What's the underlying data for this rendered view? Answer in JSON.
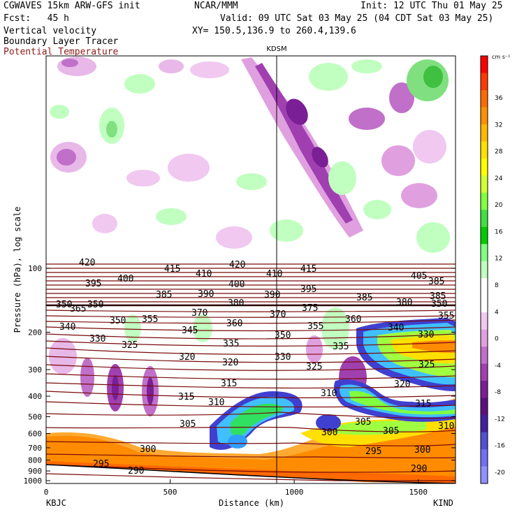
{
  "header": {
    "model": "CGWAVES 15km ARW-GFS init",
    "forecast": "Fcst:   45 h",
    "org": "NCAR/MMM",
    "init": "Init: 12 UTC Thu 01 May 25",
    "valid": "Valid: 09 UTC Sat 03 May 25 (04 CDT Sat 03 May 25)",
    "xy": "XY= 150.5,136.9 to 260.4,139.6",
    "field1": "Vertical velocity",
    "field2": "Boundary Layer Tracer",
    "field3": "Potential Temperature"
  },
  "chart_data": {
    "type": "cross-section",
    "xlabel": "Distance (km)",
    "ylabel": "Pressure (hPa), log scale",
    "x_ticks": [
      "0",
      "500",
      "1000",
      "1500"
    ],
    "y_ticks": [
      "100",
      "200",
      "300",
      "400",
      "500",
      "600",
      "700",
      "800",
      "900",
      "1000"
    ],
    "xlim": [
      0,
      1650
    ],
    "left_station": "KBJC",
    "right_station": "KIND",
    "mid_station": "KDSM",
    "colorbar_unit": "cm s⁻¹",
    "colorbar_levels": [
      "36",
      "32",
      "28",
      "24",
      "20",
      "16",
      "12",
      "8",
      "4",
      "0",
      "-4",
      "-8",
      "-12",
      "-16",
      "-20"
    ],
    "colorbar_colors": [
      "#ff0000",
      "#ff3a00",
      "#ff6a00",
      "#ff9000",
      "#ffb800",
      "#ffe000",
      "#ffff00",
      "#d0ff30",
      "#80ff40",
      "#40e040",
      "#00cc00",
      "#80ff80",
      "#c0ffc0",
      "#ffffff",
      "#ffffff",
      "#f0c8f0",
      "#e0a0e0",
      "#c070c8",
      "#a040b0",
      "#7a1f95",
      "#5c1080",
      "#4020a0",
      "#5050d0",
      "#7070f0",
      "#9090ff"
    ],
    "theta_labels": [
      {
        "v": "420",
        "x": 113,
        "y": 380
      },
      {
        "v": "415",
        "x": 235,
        "y": 389
      },
      {
        "v": "420",
        "x": 328,
        "y": 383
      },
      {
        "v": "415",
        "x": 430,
        "y": 389
      },
      {
        "v": "410",
        "x": 280,
        "y": 396
      },
      {
        "v": "410",
        "x": 381,
        "y": 396
      },
      {
        "v": "405",
        "x": 588,
        "y": 399
      },
      {
        "v": "395",
        "x": 122,
        "y": 410
      },
      {
        "v": "400",
        "x": 168,
        "y": 403
      },
      {
        "v": "400",
        "x": 327,
        "y": 411
      },
      {
        "v": "395",
        "x": 430,
        "y": 418
      },
      {
        "v": "385",
        "x": 613,
        "y": 407
      },
      {
        "v": "385",
        "x": 223,
        "y": 426
      },
      {
        "v": "390",
        "x": 283,
        "y": 425
      },
      {
        "v": "390",
        "x": 378,
        "y": 426
      },
      {
        "v": "385",
        "x": 510,
        "y": 430
      },
      {
        "v": "385",
        "x": 615,
        "y": 428
      },
      {
        "v": "380",
        "x": 326,
        "y": 438
      },
      {
        "v": "375",
        "x": 432,
        "y": 445
      },
      {
        "v": "380",
        "x": 567,
        "y": 437
      },
      {
        "v": "350",
        "x": 80,
        "y": 440
      },
      {
        "v": "350",
        "x": 125,
        "y": 440
      },
      {
        "v": "350",
        "x": 617,
        "y": 439
      },
      {
        "v": "365",
        "x": 100,
        "y": 446
      },
      {
        "v": "370",
        "x": 274,
        "y": 452
      },
      {
        "v": "370",
        "x": 386,
        "y": 454
      },
      {
        "v": "355",
        "x": 627,
        "y": 456
      },
      {
        "v": "350",
        "x": 157,
        "y": 463
      },
      {
        "v": "355",
        "x": 203,
        "y": 461
      },
      {
        "v": "360",
        "x": 324,
        "y": 467
      },
      {
        "v": "355",
        "x": 440,
        "y": 471
      },
      {
        "v": "360",
        "x": 494,
        "y": 461
      },
      {
        "v": "340",
        "x": 85,
        "y": 472
      },
      {
        "v": "345",
        "x": 260,
        "y": 477
      },
      {
        "v": "350",
        "x": 393,
        "y": 484
      },
      {
        "v": "340",
        "x": 555,
        "y": 473
      },
      {
        "v": "330",
        "x": 128,
        "y": 489
      },
      {
        "v": "325",
        "x": 174,
        "y": 498
      },
      {
        "v": "335",
        "x": 319,
        "y": 496
      },
      {
        "v": "335",
        "x": 476,
        "y": 500
      },
      {
        "v": "330",
        "x": 598,
        "y": 483
      },
      {
        "v": "320",
        "x": 256,
        "y": 515
      },
      {
        "v": "320",
        "x": 318,
        "y": 523
      },
      {
        "v": "330",
        "x": 393,
        "y": 515
      },
      {
        "v": "325",
        "x": 438,
        "y": 529
      },
      {
        "v": "325",
        "x": 599,
        "y": 526
      },
      {
        "v": "315",
        "x": 316,
        "y": 553
      },
      {
        "v": "320",
        "x": 564,
        "y": 554
      },
      {
        "v": "315",
        "x": 255,
        "y": 572
      },
      {
        "v": "310",
        "x": 298,
        "y": 580
      },
      {
        "v": "310",
        "x": 459,
        "y": 567
      },
      {
        "v": "315",
        "x": 594,
        "y": 582
      },
      {
        "v": "305",
        "x": 257,
        "y": 611
      },
      {
        "v": "305",
        "x": 508,
        "y": 608
      },
      {
        "v": "300",
        "x": 460,
        "y": 623
      },
      {
        "v": "305",
        "x": 548,
        "y": 621
      },
      {
        "v": "310",
        "x": 627,
        "y": 614
      },
      {
        "v": "300",
        "x": 200,
        "y": 647
      },
      {
        "v": "295",
        "x": 523,
        "y": 650
      },
      {
        "v": "300",
        "x": 593,
        "y": 648
      },
      {
        "v": "295",
        "x": 133,
        "y": 668
      },
      {
        "v": "290",
        "x": 183,
        "y": 678
      },
      {
        "v": "290",
        "x": 588,
        "y": 675
      }
    ]
  }
}
